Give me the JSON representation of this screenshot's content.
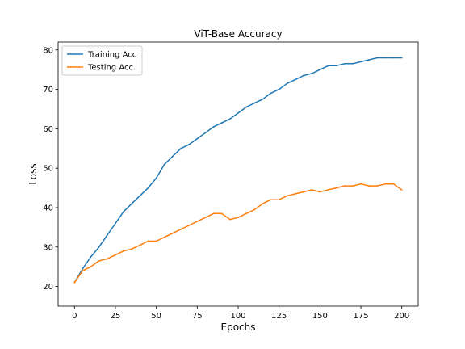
{
  "chart_data": {
    "type": "line",
    "title": "ViT-Base Accuracy",
    "xlabel": "Epochs",
    "ylabel": "Loss",
    "xlim": [
      -10,
      210
    ],
    "ylim": [
      15,
      82
    ],
    "xticks": [
      0,
      25,
      50,
      75,
      100,
      125,
      150,
      175,
      200
    ],
    "yticks": [
      20,
      30,
      40,
      50,
      60,
      70,
      80
    ],
    "grid": false,
    "legend": "upper left",
    "series": [
      {
        "name": "Training Acc",
        "color": "#1f77b4",
        "x": [
          0,
          5,
          10,
          15,
          20,
          25,
          30,
          35,
          40,
          45,
          50,
          55,
          60,
          65,
          70,
          75,
          80,
          85,
          90,
          95,
          100,
          105,
          110,
          115,
          120,
          125,
          130,
          135,
          140,
          145,
          150,
          155,
          160,
          165,
          170,
          175,
          180,
          185,
          190,
          195,
          200
        ],
        "y": [
          21,
          24.5,
          27.5,
          30,
          33,
          36,
          39,
          41,
          43,
          45,
          47.5,
          51,
          53,
          55,
          56,
          57.5,
          59,
          60.5,
          61.5,
          62.5,
          64,
          65.5,
          66.5,
          67.5,
          69,
          70,
          71.5,
          72.5,
          73.5,
          74,
          75,
          76,
          76,
          76.5,
          76.5,
          77,
          77.5,
          78,
          78,
          78,
          78
        ]
      },
      {
        "name": "Testing Acc",
        "color": "#ff7f0e",
        "x": [
          0,
          5,
          10,
          15,
          20,
          25,
          30,
          35,
          40,
          45,
          50,
          55,
          60,
          65,
          70,
          75,
          80,
          85,
          90,
          95,
          100,
          105,
          110,
          115,
          120,
          125,
          130,
          135,
          140,
          145,
          150,
          155,
          160,
          165,
          170,
          175,
          180,
          185,
          190,
          195,
          200
        ],
        "y": [
          21,
          24,
          25,
          26.5,
          27,
          28,
          29,
          29.5,
          30.5,
          31.5,
          31.5,
          32.5,
          33.5,
          34.5,
          35.5,
          36.5,
          37.5,
          38.5,
          38.5,
          37,
          37.5,
          38.5,
          39.5,
          41,
          42,
          42,
          43,
          43.5,
          44,
          44.5,
          44,
          44.5,
          45,
          45.5,
          45.5,
          46,
          45.5,
          45.5,
          46,
          46,
          44.5
        ]
      }
    ]
  }
}
